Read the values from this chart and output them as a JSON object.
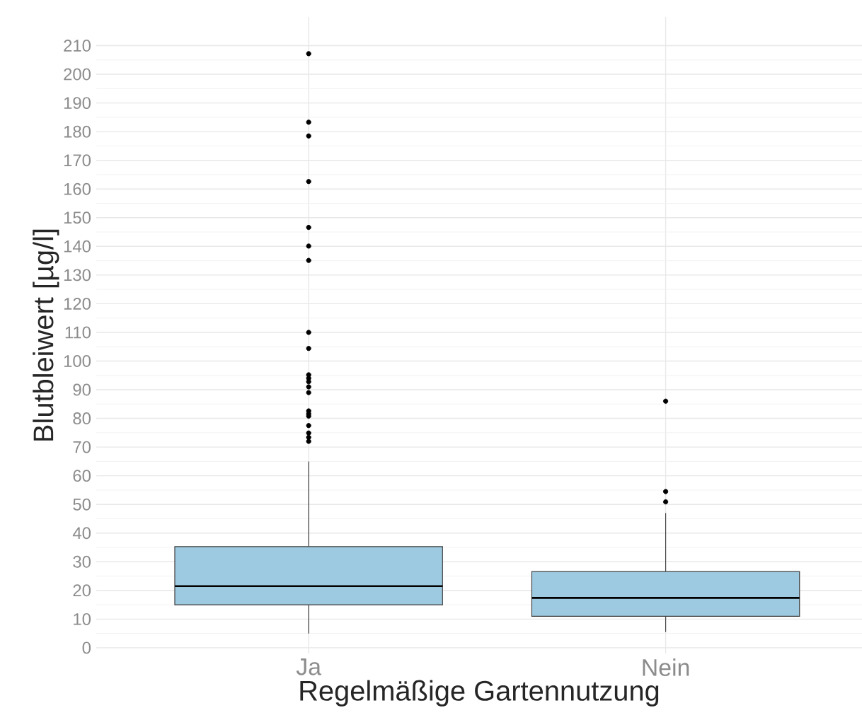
{
  "chart_data": {
    "type": "box",
    "xlabel": "Regelmäßige Gartennutzung",
    "ylabel": "Blutbleiwert [µg/l]",
    "categories": [
      "Ja",
      "Nein"
    ],
    "color": "#9ecae1",
    "boxes": [
      {
        "low": 5,
        "q1": 15,
        "median": 21.5,
        "q3": 35.3,
        "high": 65,
        "outliers": [
          72,
          73.4,
          74.9,
          77.5,
          80.8,
          81.6,
          82.6,
          89,
          91,
          92.8,
          94,
          95.2,
          104.4,
          110,
          135.1,
          140.1,
          146.6,
          162.6,
          178.5,
          183.3,
          207.2
        ]
      },
      {
        "low": 5.5,
        "q1": 11,
        "median": 17.4,
        "q3": 26.6,
        "high": 47,
        "outliers": [
          50.9,
          54.5,
          86
        ]
      }
    ],
    "ylim": [
      -2,
      220
    ],
    "yticks": [
      0,
      10,
      20,
      30,
      40,
      50,
      60,
      70,
      80,
      90,
      100,
      110,
      120,
      130,
      140,
      150,
      160,
      170,
      180,
      190,
      200,
      210
    ],
    "grid": true
  }
}
